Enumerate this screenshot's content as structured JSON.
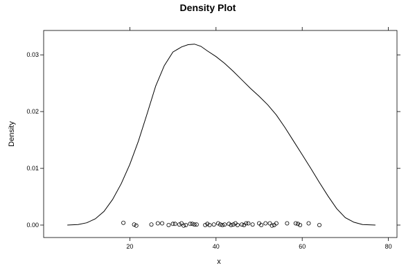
{
  "chart_data": {
    "type": "line",
    "title": "Density Plot",
    "xlabel": "x",
    "ylabel": "Density",
    "xlim": [
      0,
      82
    ],
    "ylim": [
      -0.0022,
      0.0343
    ],
    "x_ticks": [
      20,
      40,
      60,
      80
    ],
    "x_tick_labels": [
      "20",
      "40",
      "60",
      "80"
    ],
    "y_ticks": [
      0.0,
      0.01,
      0.02,
      0.03
    ],
    "y_tick_labels": [
      "0.00",
      "0.01",
      "0.02",
      "0.03"
    ],
    "grid": false,
    "series": [
      {
        "type": "line",
        "x": [
          5.5,
          8,
          10,
          12,
          14,
          16,
          18,
          20,
          22,
          24,
          26,
          28,
          30,
          32,
          33.5,
          35,
          36.5,
          38,
          40,
          42,
          44,
          46,
          48,
          50,
          52,
          54,
          56,
          58,
          60,
          62,
          64,
          66,
          68,
          70,
          72,
          74,
          77
        ],
        "y": [
          0.0,
          0.0001,
          0.0004,
          0.0011,
          0.0024,
          0.0045,
          0.0073,
          0.0107,
          0.0148,
          0.0196,
          0.0245,
          0.0281,
          0.0305,
          0.0314,
          0.0318,
          0.0319,
          0.0315,
          0.0307,
          0.0297,
          0.0285,
          0.0271,
          0.0256,
          0.0241,
          0.0227,
          0.0212,
          0.0194,
          0.0172,
          0.0148,
          0.0124,
          0.01,
          0.0075,
          0.0051,
          0.0029,
          0.0013,
          0.0005,
          0.0001,
          0.0
        ]
      },
      {
        "type": "scatter",
        "x": [
          18.5,
          21,
          21.5,
          25,
          26.5,
          27.5,
          29,
          30,
          30.5,
          31.5,
          32,
          32.5,
          33,
          34,
          34.5,
          35,
          35.5,
          37.5,
          38,
          38.5,
          39.5,
          40.5,
          41,
          41.5,
          42,
          43,
          43.5,
          44,
          44.5,
          45,
          46,
          46.5,
          47,
          47.5,
          48.5,
          50,
          50.5,
          51.5,
          52.5,
          53,
          53.5,
          54,
          56.5,
          58.5,
          59,
          59.5,
          61.5,
          64
        ],
        "y": [
          0.0004,
          0.0001,
          -0.0001,
          0.0001,
          0.0003,
          0.0003,
          0.0,
          0.0002,
          0.0002,
          0.0001,
          0.0003,
          -0.0001,
          0.0,
          0.0002,
          0.0002,
          0.0001,
          0.0001,
          0.0,
          0.0002,
          0.0,
          0.0001,
          0.0003,
          0.0001,
          0.0,
          0.0001,
          0.0002,
          0.0,
          0.0001,
          0.0003,
          0.0,
          0.0001,
          0.0,
          0.0003,
          0.0003,
          0.0001,
          0.0003,
          0.0,
          0.0003,
          0.0003,
          -0.0001,
          0.0,
          0.0003,
          0.0003,
          0.0003,
          0.0002,
          0.0,
          0.0003,
          0.0
        ]
      }
    ]
  }
}
